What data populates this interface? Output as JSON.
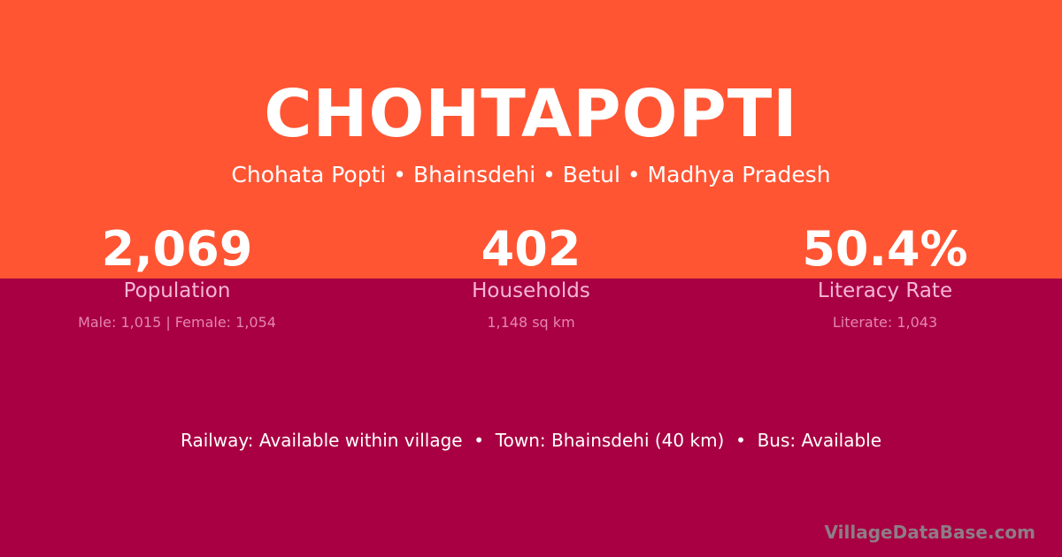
{
  "colors": {
    "header_bg": "#FF5533",
    "body_bg": "#A80042",
    "label": "#F6B6D6"
  },
  "title": "CHOHTAPOPTI",
  "subtitle": "Chohata Popti • Bhainsdehi • Betul • Madhya Pradesh",
  "stats": [
    {
      "value": "2,069",
      "label": "Population",
      "sub": "Male: 1,015 | Female: 1,054"
    },
    {
      "value": "402",
      "label": "Households",
      "sub": "1,148 sq km"
    },
    {
      "value": "50.4%",
      "label": "Literacy Rate",
      "sub": "Literate: 1,043"
    }
  ],
  "access": "Railway: Available within village  •  Town: Bhainsdehi (40 km)  •  Bus: Available",
  "brand": "VillageDataBase.com"
}
